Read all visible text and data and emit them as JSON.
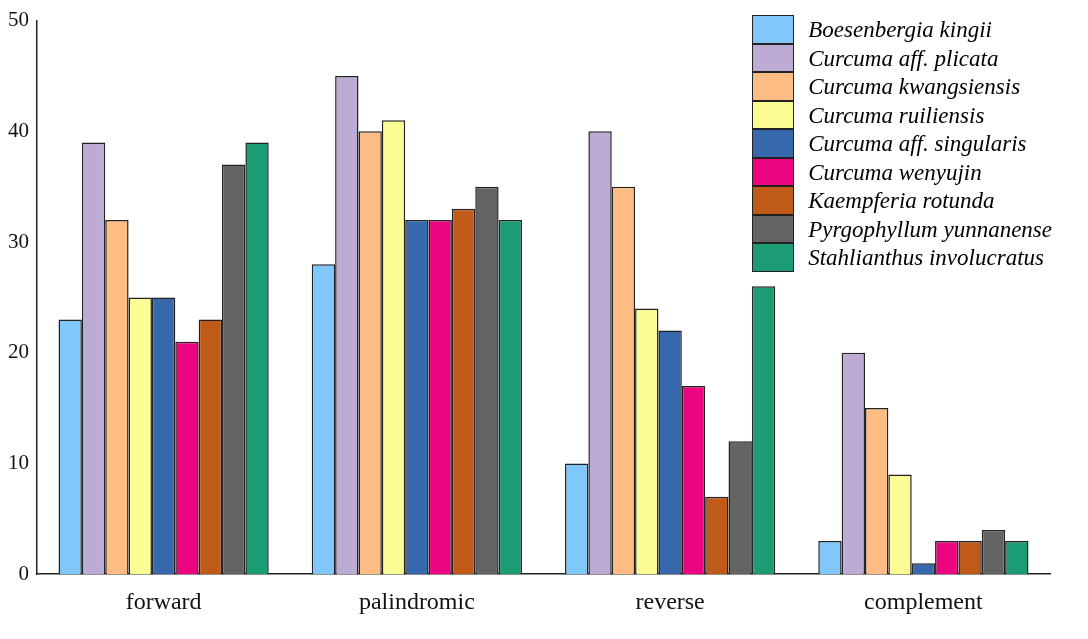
{
  "chart_data": {
    "type": "bar",
    "categories": [
      "forward",
      "palindromic",
      "reverse",
      "complement"
    ],
    "series": [
      {
        "name": "Boesenbergia kingii",
        "color": "#80c8fc",
        "values": [
          23,
          28,
          10,
          3
        ]
      },
      {
        "name": "Curcuma aff. plicata",
        "color": "#bcacd4",
        "values": [
          39,
          45,
          40,
          20
        ]
      },
      {
        "name": "Curcuma kwangsiensis",
        "color": "#fcbc84",
        "values": [
          32,
          40,
          35,
          15
        ]
      },
      {
        "name": "Curcuma ruiliensis",
        "color": "#fcfc94",
        "values": [
          25,
          41,
          24,
          9
        ]
      },
      {
        "name": "Curcuma aff. singularis",
        "color": "#3868ac",
        "values": [
          25,
          32,
          22,
          1
        ]
      },
      {
        "name": "Curcuma wenyujin",
        "color": "#ec0480",
        "values": [
          21,
          32,
          17,
          3
        ]
      },
      {
        "name": "Kaempferia rotunda",
        "color": "#c05a18",
        "values": [
          23,
          33,
          7,
          3
        ]
      },
      {
        "name": "Pyrgophyllum yunnanense",
        "color": "#646464",
        "values": [
          37,
          35,
          12,
          4
        ]
      },
      {
        "name": "Stahlianthus involucratus",
        "color": "#1c9c74",
        "values": [
          39,
          32,
          26,
          3
        ]
      }
    ],
    "ylim": [
      0,
      50
    ],
    "yticks": [
      0,
      10,
      20,
      30,
      40,
      50
    ],
    "grid": false,
    "legend": "top right"
  }
}
